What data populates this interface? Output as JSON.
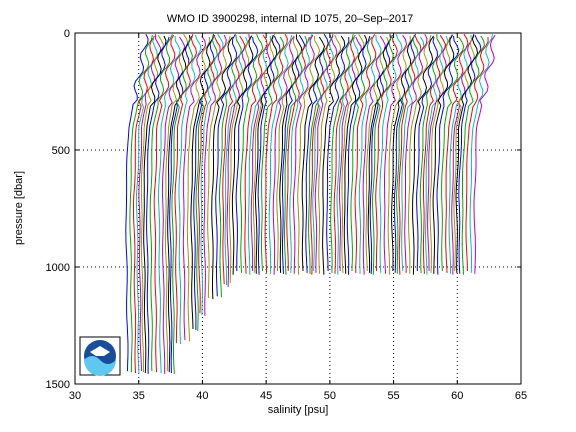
{
  "chart_data": {
    "type": "line",
    "title": "WMO ID 3900298, internal ID 1075, 20–Sep–2017",
    "xlabel": "salinity [psu]",
    "ylabel": "pressure [dbar]",
    "xlim": [
      30,
      65
    ],
    "ylim": [
      1500,
      0
    ],
    "y_reversed": true,
    "grid": "dotted",
    "x_ticks": [
      "30",
      "35",
      "40",
      "45",
      "50",
      "55",
      "60",
      "65"
    ],
    "y_ticks": [
      "0",
      "500",
      "1000",
      "1500"
    ],
    "x_tick_values": [
      30,
      35,
      40,
      45,
      50,
      55,
      60,
      65
    ],
    "y_tick_values": [
      0,
      500,
      1000,
      1500
    ],
    "offset_step": 0.25,
    "profile_count": 110,
    "series_colors": [
      "#0000ff",
      "#00aa00",
      "#ff0000",
      "#00bfbf",
      "#bf00bf",
      "#9a9a00",
      "#000000"
    ],
    "logo": "noaa-logo"
  }
}
